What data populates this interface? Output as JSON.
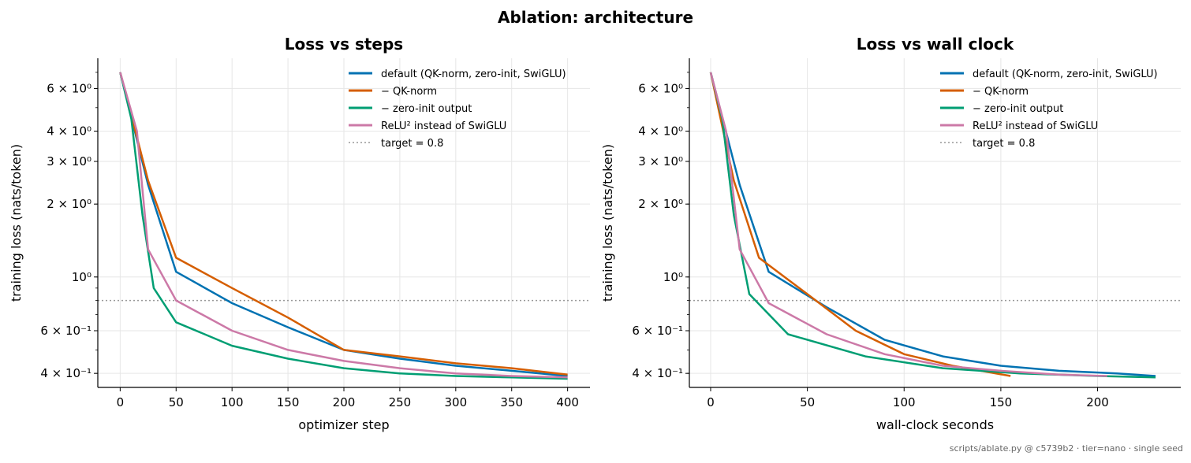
{
  "figure": {
    "suptitle": "Ablation: architecture",
    "footer": "scripts/ablate.py @ c5739b2 · tier=nano · single seed"
  },
  "chart_data": [
    {
      "type": "line",
      "title": "Loss vs steps",
      "xlabel": "optimizer step",
      "ylabel": "training loss (nats/token)",
      "xlim": [
        -20,
        420
      ],
      "ylim": [
        0.35,
        8.0
      ],
      "yscale": "log",
      "grid": true,
      "legend_position": "top-right",
      "xticks": [
        0,
        50,
        100,
        150,
        200,
        250,
        300,
        350,
        400
      ],
      "yticks": [
        {
          "value": 6,
          "label": "6 × 10⁰"
        },
        {
          "value": 4,
          "label": "4 × 10⁰"
        },
        {
          "value": 3,
          "label": "3 × 10⁰"
        },
        {
          "value": 2,
          "label": "2 × 10⁰"
        },
        {
          "value": 1,
          "label": "10⁰"
        },
        {
          "value": 0.6,
          "label": "6 × 10⁻¹"
        },
        {
          "value": 0.4,
          "label": "4 × 10⁻¹"
        }
      ],
      "target": {
        "value": 0.8,
        "label": "target = 0.8"
      },
      "series": [
        {
          "name": "default (QK-norm, zero-init, SwiGLU)",
          "color": "#0072B2",
          "x": [
            0,
            25,
            50,
            100,
            150,
            200,
            250,
            300,
            350,
            400
          ],
          "y": [
            7.0,
            2.4,
            1.05,
            0.78,
            0.62,
            0.5,
            0.46,
            0.43,
            0.41,
            0.39
          ]
        },
        {
          "name": "− QK-norm",
          "color": "#D55E00",
          "x": [
            0,
            25,
            50,
            100,
            150,
            200,
            250,
            300,
            350,
            400
          ],
          "y": [
            7.0,
            2.5,
            1.2,
            0.9,
            0.68,
            0.5,
            0.47,
            0.44,
            0.42,
            0.395
          ]
        },
        {
          "name": "− zero-init output",
          "color": "#009E73",
          "x": [
            0,
            10,
            20,
            30,
            50,
            100,
            150,
            200,
            250,
            300,
            350,
            400
          ],
          "y": [
            7.0,
            4.5,
            1.8,
            0.9,
            0.65,
            0.52,
            0.46,
            0.42,
            0.4,
            0.39,
            0.385,
            0.38
          ]
        },
        {
          "name": "ReLU² instead of SwiGLU",
          "color": "#CC79A7",
          "x": [
            0,
            15,
            25,
            50,
            100,
            150,
            200,
            250,
            300,
            350,
            400
          ],
          "y": [
            7.0,
            4.0,
            1.3,
            0.8,
            0.6,
            0.5,
            0.45,
            0.42,
            0.4,
            0.39,
            0.385
          ]
        }
      ]
    },
    {
      "type": "line",
      "title": "Loss vs wall clock",
      "xlabel": "wall-clock seconds",
      "ylabel": "training loss (nats/token)",
      "xlim": [
        -11,
        243
      ],
      "ylim": [
        0.35,
        8.0
      ],
      "yscale": "log",
      "grid": true,
      "legend_position": "top-right",
      "xticks": [
        0,
        50,
        100,
        150,
        200
      ],
      "yticks": [
        {
          "value": 6,
          "label": "6 × 10⁰"
        },
        {
          "value": 4,
          "label": "4 × 10⁰"
        },
        {
          "value": 3,
          "label": "3 × 10⁰"
        },
        {
          "value": 2,
          "label": "2 × 10⁰"
        },
        {
          "value": 1,
          "label": "10⁰"
        },
        {
          "value": 0.6,
          "label": "6 × 10⁻¹"
        },
        {
          "value": 0.4,
          "label": "4 × 10⁻¹"
        }
      ],
      "target": {
        "value": 0.8,
        "label": "target = 0.8"
      },
      "series": [
        {
          "name": "default (QK-norm, zero-init, SwiGLU)",
          "color": "#0072B2",
          "x": [
            0,
            15,
            30,
            60,
            90,
            120,
            150,
            180,
            210,
            230
          ],
          "y": [
            7.0,
            2.4,
            1.05,
            0.75,
            0.55,
            0.47,
            0.43,
            0.41,
            0.4,
            0.39
          ]
        },
        {
          "name": "− QK-norm",
          "color": "#D55E00",
          "x": [
            0,
            12,
            25,
            50,
            75,
            100,
            125,
            155
          ],
          "y": [
            7.0,
            2.5,
            1.2,
            0.85,
            0.6,
            0.48,
            0.43,
            0.39
          ]
        },
        {
          "name": "− zero-init output",
          "color": "#009E73",
          "x": [
            0,
            6,
            12,
            20,
            40,
            80,
            120,
            160,
            200,
            230
          ],
          "y": [
            7.0,
            4.5,
            1.8,
            0.85,
            0.58,
            0.47,
            0.42,
            0.4,
            0.39,
            0.385
          ]
        },
        {
          "name": "ReLU² instead of SwiGLU",
          "color": "#CC79A7",
          "x": [
            0,
            8,
            15,
            30,
            60,
            90,
            120,
            150,
            180,
            205
          ],
          "y": [
            7.0,
            4.0,
            1.3,
            0.78,
            0.58,
            0.48,
            0.43,
            0.41,
            0.395,
            0.39
          ]
        }
      ]
    }
  ]
}
